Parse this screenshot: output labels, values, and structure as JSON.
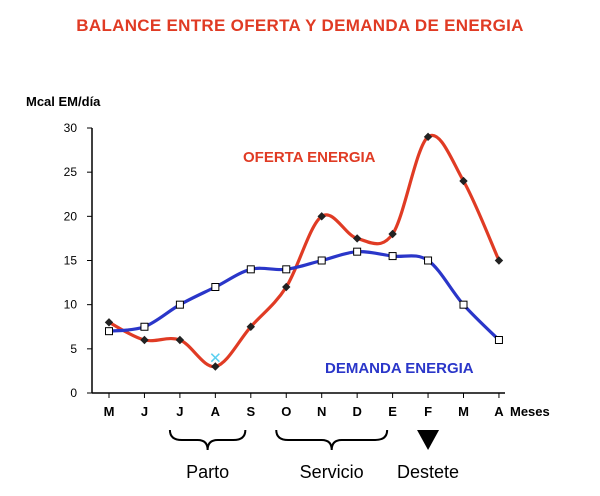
{
  "chart_data": {
    "type": "line",
    "title": "BALANCE ENTRE OFERTA Y DEMANDA DE ENERGIA",
    "ylabel": "Mcal EM/día",
    "xlabel": "Meses",
    "ylim": [
      0,
      30
    ],
    "yticks": [
      0,
      5,
      10,
      15,
      20,
      25,
      30
    ],
    "categories": [
      "M",
      "J",
      "J",
      "A",
      "S",
      "O",
      "N",
      "D",
      "E",
      "F",
      "M",
      "A"
    ],
    "series": [
      {
        "name": "OFERTA ENERGIA",
        "color": "#e03b24",
        "marker": "filled-diamond",
        "values": [
          8,
          6,
          6,
          3,
          7.5,
          12,
          20,
          17.5,
          18,
          29,
          24,
          15
        ]
      },
      {
        "name": "DEMANDA ENERGIA",
        "color": "#2a36c9",
        "marker": "hollow-square",
        "values": [
          7,
          7.5,
          10,
          12,
          14,
          14,
          15,
          16,
          15.5,
          15,
          10,
          6
        ]
      }
    ],
    "annotations": [
      {
        "label": "Parto",
        "span": [
          "J",
          "A"
        ],
        "start_index": 2,
        "end_index": 3,
        "marker": "brace"
      },
      {
        "label": "Servicio",
        "span": [
          "O",
          "D"
        ],
        "start_index": 5,
        "end_index": 7,
        "marker": "brace"
      },
      {
        "label": "Destete",
        "at": "F",
        "index": 9,
        "marker": "triangle-down"
      }
    ],
    "extra_point": {
      "category": "A",
      "index": 3,
      "value": 4,
      "marker": "cross",
      "color": "#5ad0f0"
    },
    "grid": false
  },
  "colors": {
    "title": "#e03b24",
    "axis": "#000000"
  }
}
